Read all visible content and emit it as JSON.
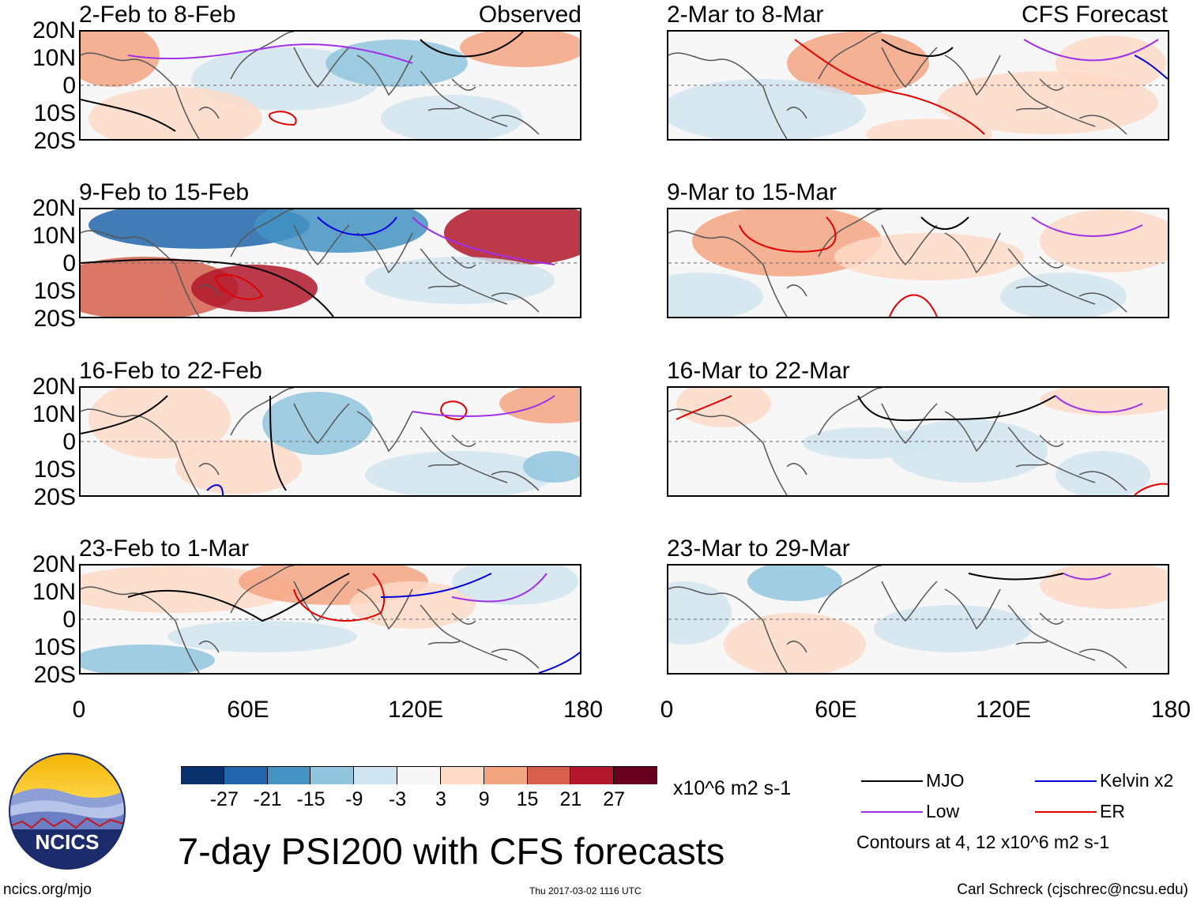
{
  "title": "7-day PSI200 with CFS forecasts",
  "observed_tag": "Observed",
  "forecast_tag": "CFS Forecast",
  "latitude_labels": [
    "20N",
    "10N",
    "0",
    "10S",
    "20S"
  ],
  "longitude_labels": [
    "0",
    "60E",
    "120E",
    "180"
  ],
  "panels": [
    {
      "title": "2-Feb to 8-Feb",
      "column": "observed"
    },
    {
      "title": "9-Feb to 15-Feb",
      "column": "observed"
    },
    {
      "title": "16-Feb to 22-Feb",
      "column": "observed"
    },
    {
      "title": "23-Feb to 1-Mar",
      "column": "observed"
    },
    {
      "title": "2-Mar to 8-Mar",
      "column": "forecast"
    },
    {
      "title": "9-Mar to 15-Mar",
      "column": "forecast"
    },
    {
      "title": "16-Mar to 22-Mar",
      "column": "forecast"
    },
    {
      "title": "23-Mar to 29-Mar",
      "column": "forecast"
    }
  ],
  "colorbar": {
    "units": "x10^6 m2 s-1",
    "ticks": [
      "-27",
      "-21",
      "-15",
      "-9",
      "-3",
      "3",
      "9",
      "15",
      "21",
      "27"
    ],
    "colors": [
      "#08306b",
      "#2166ac",
      "#4393c3",
      "#92c5de",
      "#d1e5f0",
      "#f7f7f7",
      "#fddbc7",
      "#f4a582",
      "#d6604d",
      "#b2182b",
      "#67001f"
    ]
  },
  "legend": {
    "items": [
      {
        "label": "MJO",
        "color": "#000000"
      },
      {
        "label": "Kelvin x2",
        "color": "#0000dd"
      },
      {
        "label": "Low",
        "color": "#a030e8"
      },
      {
        "label": "ER",
        "color": "#e00000"
      }
    ],
    "contour_note": "Contours at 4, 12 x10^6 m2 s-1"
  },
  "logo_text": "NCICS",
  "footer": {
    "website": "ncics.org/mjo",
    "timestamp": "Thu 2017-03-02 1116 UTC",
    "author": "Carl Schreck (cjschrec@ncsu.edu)"
  }
}
